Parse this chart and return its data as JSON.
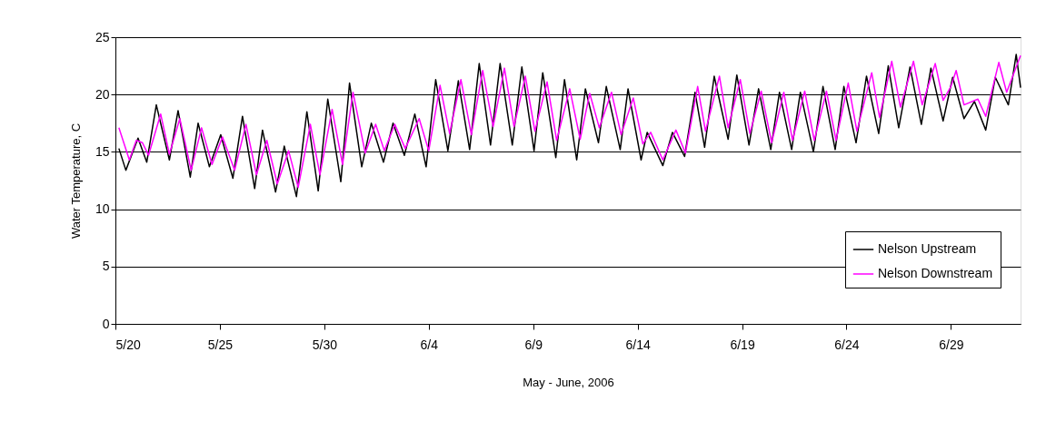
{
  "chart_data": {
    "type": "line",
    "xlabel": "May - June, 2006",
    "ylabel": "Water Temperature, C",
    "xlim": [
      "2006-05-20T00:00",
      "2006-07-02T08:00"
    ],
    "ylim": [
      0,
      25
    ],
    "yticks": [
      0,
      5,
      10,
      15,
      20,
      25
    ],
    "xticks": [
      {
        "value": "2006-05-20T00:00",
        "label": "5/20"
      },
      {
        "value": "2006-05-25T00:00",
        "label": "5/25"
      },
      {
        "value": "2006-05-30T00:00",
        "label": "5/30"
      },
      {
        "value": "2006-06-04T00:00",
        "label": "6/4"
      },
      {
        "value": "2006-06-09T00:00",
        "label": "6/9"
      },
      {
        "value": "2006-06-14T00:00",
        "label": "6/14"
      },
      {
        "value": "2006-06-19T00:00",
        "label": "6/19"
      },
      {
        "value": "2006-06-24T00:00",
        "label": "6/24"
      },
      {
        "value": "2006-06-29T00:00",
        "label": "6/29"
      }
    ],
    "grid": "y",
    "legend": "bottom right",
    "marker": "none",
    "line_style": "solid",
    "series": [
      {
        "name": "Nelson Upstream",
        "color": "#000000",
        "x": [
          "2006-05-20T04:00",
          "2006-05-20T12:00",
          "2006-05-21T02:00",
          "2006-05-21T12:00",
          "2006-05-21T23:00",
          "2006-05-22T14:00",
          "2006-05-23T00:00",
          "2006-05-23T14:00",
          "2006-05-23T23:00",
          "2006-05-24T12:00",
          "2006-05-25T01:00",
          "2006-05-25T15:00",
          "2006-05-26T02:00",
          "2006-05-26T16:00",
          "2006-05-27T01:00",
          "2006-05-27T16:00",
          "2006-05-28T02:00",
          "2006-05-28T16:00",
          "2006-05-29T04:00",
          "2006-05-29T17:00",
          "2006-05-30T04:00",
          "2006-05-30T19:00",
          "2006-05-31T05:00",
          "2006-05-31T19:00",
          "2006-06-01T06:00",
          "2006-06-01T20:00",
          "2006-06-02T07:00",
          "2006-06-02T20:00",
          "2006-06-03T08:00",
          "2006-06-03T21:00",
          "2006-06-04T08:00",
          "2006-06-04T22:00",
          "2006-06-05T10:00",
          "2006-06-05T23:00",
          "2006-06-06T10:00",
          "2006-06-06T23:00",
          "2006-06-07T10:00",
          "2006-06-08T00:00",
          "2006-06-08T11:00",
          "2006-06-09T01:00",
          "2006-06-09T11:00",
          "2006-06-10T02:00",
          "2006-06-10T12:00",
          "2006-06-11T02:00",
          "2006-06-11T12:00",
          "2006-06-12T03:00",
          "2006-06-12T12:00",
          "2006-06-13T04:00",
          "2006-06-13T13:00",
          "2006-06-14T04:00",
          "2006-06-14T11:00",
          "2006-06-15T05:00",
          "2006-06-15T16:00",
          "2006-06-16T06:00",
          "2006-06-16T18:00",
          "2006-06-17T05:00",
          "2006-06-17T16:00",
          "2006-06-18T08:00",
          "2006-06-18T18:00",
          "2006-06-19T08:00",
          "2006-06-19T19:00",
          "2006-06-20T09:00",
          "2006-06-20T19:00",
          "2006-06-21T09:00",
          "2006-06-21T19:00",
          "2006-06-22T10:00",
          "2006-06-22T21:00",
          "2006-06-23T11:00",
          "2006-06-23T21:00",
          "2006-06-24T11:00",
          "2006-06-24T23:00",
          "2006-06-25T13:00",
          "2006-06-26T00:00",
          "2006-06-26T12:00",
          "2006-06-27T01:00",
          "2006-06-27T14:00",
          "2006-06-28T01:00",
          "2006-06-28T15:00",
          "2006-06-29T02:00",
          "2006-06-29T15:00",
          "2006-06-30T03:00",
          "2006-06-30T16:00",
          "2006-07-01T03:00",
          "2006-07-01T18:00",
          "2006-07-02T03:00",
          "2006-07-02T08:00"
        ],
        "values": [
          15.3,
          13.4,
          16.2,
          14.1,
          19.1,
          14.3,
          18.6,
          12.8,
          17.5,
          13.7,
          16.5,
          12.7,
          18.1,
          11.8,
          16.9,
          11.5,
          15.5,
          11.1,
          18.5,
          11.6,
          19.6,
          12.4,
          21.0,
          13.7,
          17.5,
          14.1,
          17.5,
          14.7,
          18.3,
          13.7,
          21.3,
          15.1,
          21.2,
          15.2,
          22.7,
          15.6,
          22.7,
          15.6,
          22.4,
          15.1,
          21.9,
          14.5,
          21.3,
          14.3,
          20.5,
          15.8,
          20.7,
          15.2,
          20.5,
          14.3,
          16.7,
          13.8,
          16.7,
          14.6,
          20.2,
          15.4,
          21.6,
          16.1,
          21.7,
          15.6,
          20.5,
          15.2,
          20.2,
          15.2,
          20.2,
          15.0,
          20.7,
          15.2,
          20.7,
          15.8,
          21.6,
          16.6,
          22.5,
          17.1,
          22.4,
          17.4,
          22.3,
          17.7,
          21.5,
          17.9,
          19.4,
          16.9,
          21.5,
          19.1,
          23.5,
          20.6
        ]
      },
      {
        "name": "Nelson Downstream",
        "color": "#ff00ff",
        "x": [
          "2006-05-20T04:00",
          "2006-05-20T16:00",
          "2006-05-21T00:00",
          "2006-05-21T07:00",
          "2006-05-21T14:00",
          "2006-05-22T04:00",
          "2006-05-22T14:00",
          "2006-05-23T02:00",
          "2006-05-23T15:00",
          "2006-05-24T03:00",
          "2006-05-24T15:00",
          "2006-05-25T03:00",
          "2006-05-25T17:00",
          "2006-05-26T06:00",
          "2006-05-26T18:00",
          "2006-05-27T06:00",
          "2006-05-27T18:00",
          "2006-05-28T07:00",
          "2006-05-28T18:00",
          "2006-05-29T08:00",
          "2006-05-29T19:00",
          "2006-05-30T09:00",
          "2006-05-30T21:00",
          "2006-05-31T09:00",
          "2006-05-31T23:00",
          "2006-06-01T11:00",
          "2006-06-01T21:00",
          "2006-06-02T09:00",
          "2006-06-02T21:00",
          "2006-06-03T13:00",
          "2006-06-04T00:00",
          "2006-06-04T13:00",
          "2006-06-05T00:00",
          "2006-06-05T13:00",
          "2006-06-06T01:00",
          "2006-06-06T14:00",
          "2006-06-07T02:00",
          "2006-06-07T15:00",
          "2006-06-08T02:00",
          "2006-06-08T15:00",
          "2006-06-09T02:00",
          "2006-06-09T16:00",
          "2006-06-10T03:00",
          "2006-06-10T18:00",
          "2006-06-11T06:00",
          "2006-06-11T17:00",
          "2006-06-12T04:00",
          "2006-06-12T18:00",
          "2006-06-13T05:00",
          "2006-06-13T19:00",
          "2006-06-14T06:00",
          "2006-06-14T15:00",
          "2006-06-15T05:00",
          "2006-06-15T20:00",
          "2006-06-16T07:00",
          "2006-06-16T21:00",
          "2006-06-17T06:00",
          "2006-06-17T22:00",
          "2006-06-18T08:00",
          "2006-06-18T22:00",
          "2006-06-19T09:00",
          "2006-06-19T22:00",
          "2006-06-20T10:00",
          "2006-06-21T00:00",
          "2006-06-21T10:00",
          "2006-06-22T00:00",
          "2006-06-22T11:00",
          "2006-06-23T01:00",
          "2006-06-23T12:00",
          "2006-06-24T02:00",
          "2006-06-24T12:00",
          "2006-06-25T05:00",
          "2006-06-25T14:00",
          "2006-06-26T04:00",
          "2006-06-26T14:00",
          "2006-06-27T05:00",
          "2006-06-27T15:00",
          "2006-06-28T06:00",
          "2006-06-28T15:00",
          "2006-06-29T00:00",
          "2006-06-29T06:00",
          "2006-06-29T15:00",
          "2006-06-30T07:00",
          "2006-06-30T16:00",
          "2006-07-01T07:00",
          "2006-07-01T16:00",
          "2006-07-02T08:00"
        ],
        "values": [
          17.1,
          14.3,
          16.0,
          15.8,
          14.7,
          18.3,
          14.8,
          17.9,
          13.4,
          17.1,
          13.9,
          16.3,
          13.4,
          17.4,
          13.0,
          16.0,
          12.2,
          15.1,
          11.9,
          17.4,
          13.0,
          18.7,
          13.9,
          20.2,
          14.9,
          17.4,
          15.1,
          17.4,
          15.3,
          17.9,
          15.1,
          20.8,
          16.6,
          21.3,
          16.5,
          22.1,
          17.2,
          22.3,
          17.2,
          21.6,
          16.8,
          21.1,
          16.0,
          20.5,
          16.1,
          20.1,
          17.1,
          20.2,
          16.5,
          19.7,
          15.7,
          16.7,
          14.3,
          16.9,
          14.9,
          20.7,
          16.8,
          21.6,
          17.1,
          21.3,
          16.6,
          20.3,
          15.8,
          20.2,
          16.0,
          20.3,
          16.0,
          20.3,
          16.0,
          21.0,
          16.8,
          21.9,
          18.0,
          22.9,
          18.9,
          22.9,
          19.1,
          22.7,
          19.5,
          20.7,
          22.1,
          19.1,
          19.6,
          18.1,
          22.8,
          20.2,
          23.4
        ]
      }
    ]
  }
}
